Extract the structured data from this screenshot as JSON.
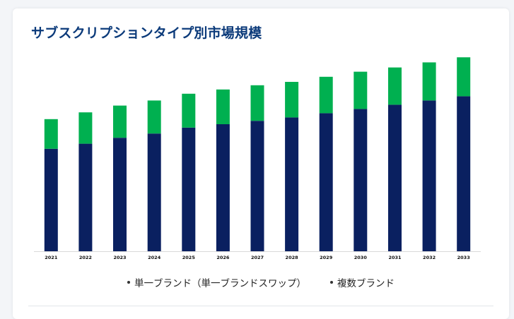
{
  "title": "サブスクリプションタイプ別市場規模",
  "colors": {
    "single_brand": "#0a2060",
    "multi_brand": "#00b050",
    "axis": "#d9d9d9",
    "tick_text": "#111111"
  },
  "chart_data": {
    "type": "bar",
    "stacked": true,
    "title": "サブスクリプションタイプ別市場規模",
    "xlabel": "",
    "ylabel": "",
    "categories": [
      "2021",
      "2022",
      "2023",
      "2024",
      "2025",
      "2026",
      "2027",
      "2028",
      "2029",
      "2030",
      "2031",
      "2032",
      "2033"
    ],
    "series": [
      {
        "name": "単一ブランド（単一ブランドスワップ）",
        "values": [
          121,
          127,
          134,
          139,
          146,
          150,
          154,
          158,
          163,
          168,
          173,
          178,
          183
        ]
      },
      {
        "name": "複数ブランド",
        "values": [
          35,
          37,
          38,
          39,
          40,
          41,
          42,
          42,
          43,
          44,
          44,
          45,
          46
        ]
      }
    ],
    "ylim": [
      0,
      235
    ],
    "grid": false,
    "y_axis_visible": false,
    "legend_position": "bottom"
  }
}
